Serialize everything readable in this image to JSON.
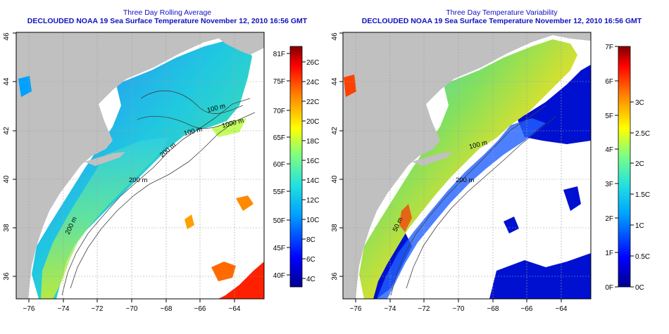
{
  "colors": {
    "land": "#c0c0c0",
    "no_data": "#ffffff",
    "frame": "#000000",
    "grid": "#a0a0a0",
    "title": "#1010c0"
  },
  "panels": [
    {
      "id": "rolling-average",
      "title": "Three Day Rolling Average",
      "subtitle": "DECLOUDED NOAA 19 Sea Surface Temperature November 12, 2010 16:56 GMT",
      "x_ticks": [
        "−76",
        "−74",
        "−72",
        "−70",
        "−68",
        "−66",
        "−64"
      ],
      "y_ticks": [
        "36",
        "38",
        "40",
        "42",
        "44",
        "46"
      ],
      "contour_labels": [
        "100 m",
        "100 m",
        "200 m",
        "1000 m",
        "200 m",
        "200 m"
      ],
      "colorbar": {
        "range_c": [
          3,
          28
        ],
        "left_labels": [
          "81F",
          "75F",
          "70F",
          "65F",
          "60F",
          "55F",
          "50F",
          "45F",
          "40F"
        ],
        "right_labels": [
          "26C",
          "24C",
          "22C",
          "20C",
          "18C",
          "16C",
          "14C",
          "12C",
          "10C",
          "8C",
          "6C",
          "4C"
        ]
      }
    },
    {
      "id": "temperature-variability",
      "title": "Three Day Temperature Variability",
      "subtitle": "DECLOUDED NOAA 19 Sea Surface Temperature November 12, 2010 16:56 GMT",
      "x_ticks": [
        "−76",
        "−74",
        "−72",
        "−70",
        "−68",
        "−66",
        "−64"
      ],
      "y_ticks": [
        "36",
        "38",
        "40",
        "42",
        "44",
        "46"
      ],
      "contour_labels": [
        "100 m",
        "200 m",
        "50 m"
      ],
      "colorbar": {
        "range_f": [
          0,
          7
        ],
        "left_labels": [
          "7F",
          "6F",
          "5F",
          "4F",
          "3F",
          "2F",
          "1F",
          "0F"
        ],
        "right_labels": [
          "3C",
          "2.5C",
          "2C",
          "1.5C",
          "1C",
          "0.5C",
          "0C"
        ]
      }
    }
  ]
}
